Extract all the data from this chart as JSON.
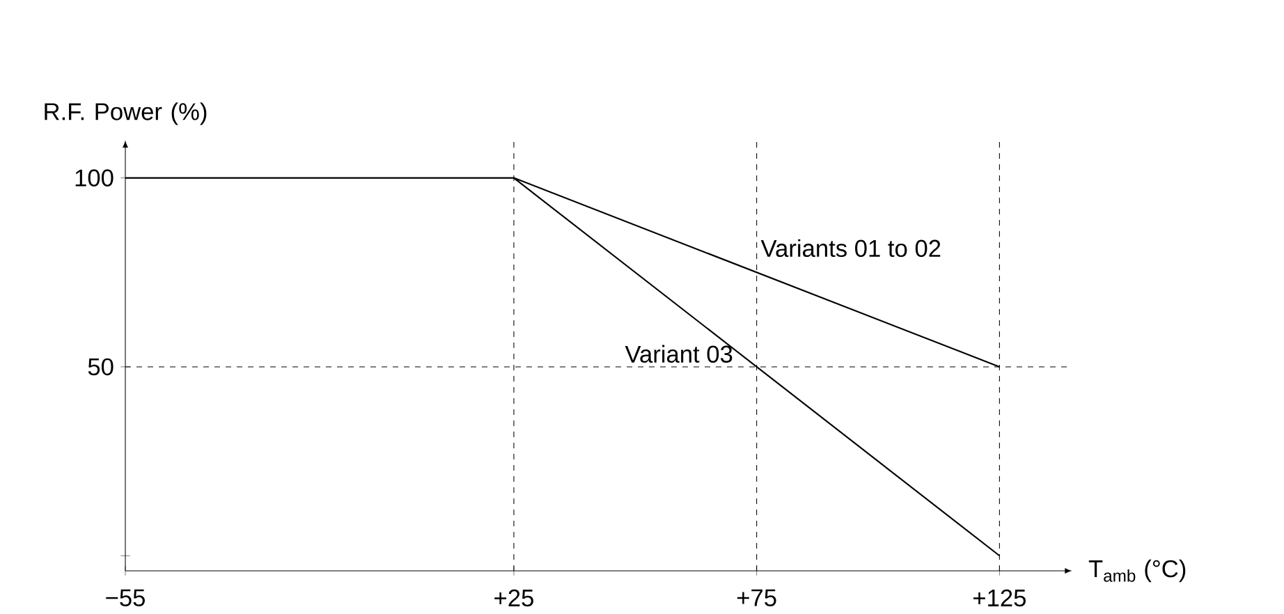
{
  "chart_data": {
    "type": "line",
    "xlabel": "T$_{amb}$ (°C)",
    "ylabel": "R.F. Power (%)",
    "xlim": [
      -55,
      140
    ],
    "ylim": [
      -4,
      110
    ],
    "xticks": [
      {
        "value": -55,
        "label": "−55"
      },
      {
        "value": 25,
        "label": "+25"
      },
      {
        "value": 75,
        "label": "+75"
      },
      {
        "value": 125,
        "label": "+125"
      }
    ],
    "yticks": [
      {
        "value": 0,
        "label": null
      },
      50,
      100
    ],
    "series": [
      {
        "name": "Variants 01 to 02",
        "color": "#000000",
        "x": [
          -55,
          25,
          125
        ],
        "values": [
          100,
          100,
          50
        ]
      },
      {
        "name": "Variant 03",
        "color": "#000000",
        "x": [
          25,
          75,
          125
        ],
        "values": [
          100,
          50,
          0
        ]
      }
    ],
    "ref_lines": [
      {
        "axis": "x",
        "value": 25,
        "label": null,
        "line_style": "dashed",
        "color": "#000000"
      },
      {
        "axis": "x",
        "value": 75,
        "label": null,
        "line_style": "dashed",
        "color": "#000000"
      },
      {
        "axis": "x",
        "value": 125,
        "label": null,
        "line_style": "dashed",
        "color": "#000000"
      },
      {
        "axis": "y",
        "value": 50,
        "label": null,
        "line_style": "dashed",
        "color": "#000000"
      }
    ],
    "line_style": "solid"
  }
}
